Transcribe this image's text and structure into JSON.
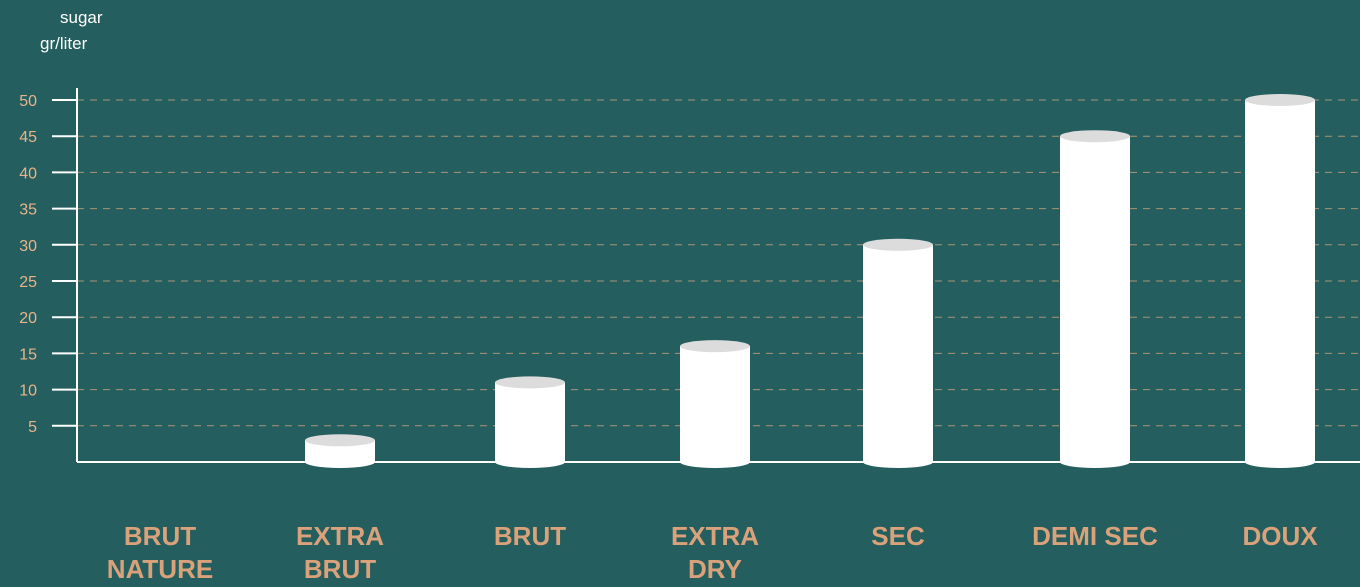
{
  "chart_data": {
    "type": "bar",
    "title": "",
    "xlabel": "",
    "ylabel": "sugar\ngr/liter",
    "ylabel_lines": [
      "sugar",
      "gr/liter"
    ],
    "categories": [
      "BRUT\nNATURE",
      "EXTRA\nBRUT",
      "BRUT",
      "EXTRA\nDRY",
      "SEC",
      "DEMI SEC",
      "DOUX"
    ],
    "values": [
      0,
      3,
      11,
      16,
      30,
      45,
      50
    ],
    "ylim": [
      0,
      50
    ],
    "yticks": [
      5,
      10,
      15,
      20,
      25,
      30,
      35,
      40,
      45,
      50
    ],
    "ytick_labels": [
      "5",
      "10",
      "15",
      "20",
      "25",
      "30",
      "35",
      "40",
      "45",
      "50"
    ],
    "grid": true,
    "grid_style": "dashed",
    "bar_style": "cylinder",
    "legend": "none"
  },
  "colors": {
    "background": "#245e5e",
    "bar": "#ffffff",
    "bar_top": "#dcdcdc",
    "axis": "#ffffff",
    "grid": "#c9a47a",
    "tick_label": "#e8b48a",
    "category_label": "#d9a27a",
    "unit_label": "#ffffff"
  }
}
